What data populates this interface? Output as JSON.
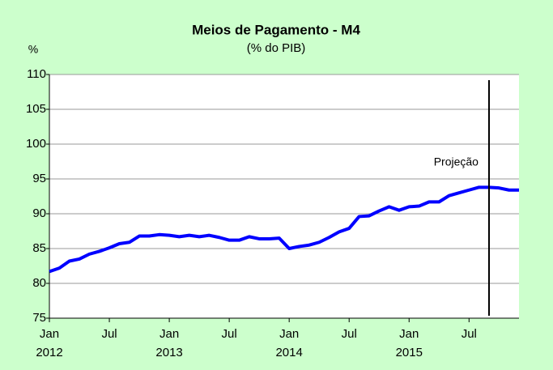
{
  "chart_data": {
    "type": "line",
    "title": "Meios de Pagamento - M4",
    "subtitle": "(% do PIB)",
    "y_label": "%",
    "categories": [
      "Jan 2012",
      null,
      null,
      null,
      null,
      null,
      "Jul",
      null,
      null,
      null,
      null,
      null,
      "Jan 2013",
      null,
      null,
      null,
      null,
      null,
      "Jul",
      null,
      null,
      null,
      null,
      null,
      "Jan 2014",
      null,
      null,
      null,
      null,
      null,
      "Jul",
      null,
      null,
      null,
      null,
      null,
      "Jan 2015",
      null,
      null,
      null,
      null,
      null,
      "Jul",
      null,
      null,
      null,
      null,
      null
    ],
    "series": [
      {
        "name": "M4",
        "color": "#0000ff",
        "values": [
          81.7,
          82.2,
          83.2,
          83.5,
          84.2,
          84.6,
          85.1,
          85.7,
          85.9,
          86.8,
          86.8,
          87.0,
          86.9,
          86.7,
          86.9,
          86.7,
          86.9,
          86.6,
          86.2,
          86.2,
          86.7,
          86.4,
          86.4,
          86.5,
          85.0,
          85.3,
          85.5,
          85.9,
          86.6,
          87.4,
          87.9,
          89.6,
          89.7,
          90.4,
          91.0,
          90.5,
          91.0,
          91.1,
          91.7,
          91.7,
          92.6,
          93.0,
          93.4,
          93.8,
          93.8,
          93.7,
          93.4,
          93.4
        ]
      }
    ],
    "ylim": [
      75,
      110
    ],
    "yticks": [
      75,
      80,
      85,
      90,
      95,
      100,
      105,
      110
    ],
    "grid": true,
    "annotation": {
      "text": "Projeção",
      "x": 44
    }
  }
}
